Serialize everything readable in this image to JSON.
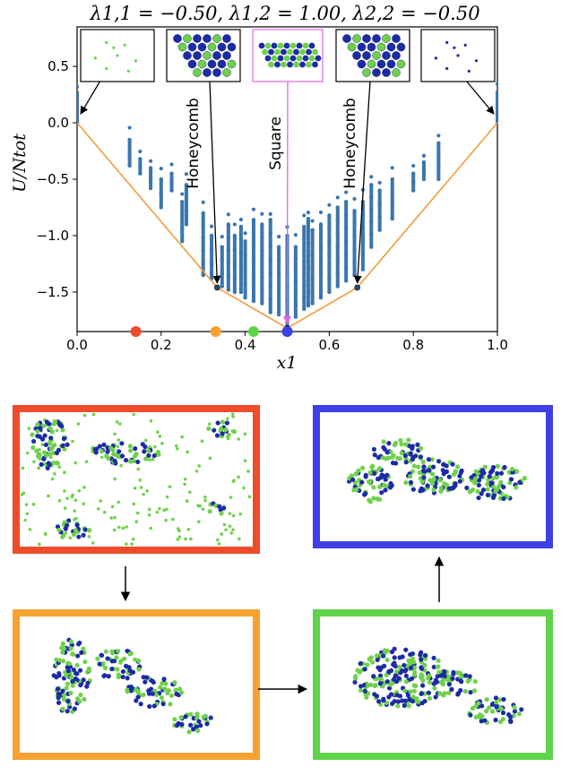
{
  "chart_data": {
    "type": "scatter",
    "title": "λ1,1 = −0.50, λ1,2 = 1.00, λ2,2 = −0.50",
    "xlabel": "x1",
    "ylabel": "U/Ntot",
    "xlim": [
      0.0,
      1.0
    ],
    "ylim": [
      -1.85,
      0.85
    ],
    "xticks": [
      "0.0",
      "0.2",
      "0.4",
      "0.6",
      "0.8",
      "1.0"
    ],
    "yticks": [
      "0.5",
      "0.0",
      "−0.5",
      "−1.0",
      "−1.5"
    ],
    "grid": false,
    "scatter_color": "#3a76ad",
    "hull_color": "#f59a3c",
    "hull": {
      "x": [
        0.0,
        0.3333,
        0.5,
        0.6667,
        1.0
      ],
      "y": [
        0.0,
        -1.46,
        -1.82,
        -1.46,
        0.0
      ]
    },
    "annotations": [
      {
        "label": "Honeycomb",
        "x": 0.3333,
        "y": -1.46
      },
      {
        "label": "Square",
        "x": 0.5,
        "y": -1.82
      },
      {
        "label": "Honeycomb",
        "x": 0.6667,
        "y": -1.46
      }
    ],
    "markers": [
      {
        "x": 0.14,
        "color": "#ee4b2b"
      },
      {
        "x": 0.33,
        "color": "#f5a230"
      },
      {
        "x": 0.42,
        "color": "#5fd349"
      },
      {
        "x": 0.5,
        "color": "#3c40e5"
      }
    ],
    "scatter_columns": [
      {
        "x": 0.0,
        "ymin": 0.0,
        "ymax": 0.27
      },
      {
        "x": 0.125,
        "ymin": -0.38,
        "ymax": -0.15
      },
      {
        "x": 0.15,
        "ymin": -0.45,
        "ymax": -0.32
      },
      {
        "x": 0.175,
        "ymin": -0.58,
        "ymax": -0.4
      },
      {
        "x": 0.2,
        "ymin": -0.75,
        "ymax": -0.5
      },
      {
        "x": 0.225,
        "ymin": -0.6,
        "ymax": -0.45
      },
      {
        "x": 0.25,
        "ymin": -1.05,
        "ymax": -0.7
      },
      {
        "x": 0.26,
        "ymin": -0.9,
        "ymax": -0.55
      },
      {
        "x": 0.3,
        "ymin": -1.35,
        "ymax": -0.8
      },
      {
        "x": 0.32,
        "ymin": -1.38,
        "ymax": -1.0
      },
      {
        "x": 0.345,
        "ymin": -1.45,
        "ymax": -1.1
      },
      {
        "x": 0.36,
        "ymin": -1.48,
        "ymax": -0.9
      },
      {
        "x": 0.375,
        "ymin": -1.5,
        "ymax": -1.0
      },
      {
        "x": 0.39,
        "ymin": -1.5,
        "ymax": -0.92
      },
      {
        "x": 0.4,
        "ymin": -1.55,
        "ymax": -1.05
      },
      {
        "x": 0.42,
        "ymin": -1.58,
        "ymax": -0.86
      },
      {
        "x": 0.44,
        "ymin": -1.6,
        "ymax": -0.9
      },
      {
        "x": 0.46,
        "ymin": -1.68,
        "ymax": -0.86
      },
      {
        "x": 0.48,
        "ymin": -1.7,
        "ymax": -1.1
      },
      {
        "x": 0.5,
        "ymin": -1.8,
        "ymax": -1.0
      },
      {
        "x": 0.52,
        "ymin": -1.72,
        "ymax": -1.1
      },
      {
        "x": 0.54,
        "ymin": -1.65,
        "ymax": -0.92
      },
      {
        "x": 0.55,
        "ymin": -1.62,
        "ymax": -0.85
      },
      {
        "x": 0.56,
        "ymin": -1.6,
        "ymax": -0.95
      },
      {
        "x": 0.58,
        "ymin": -1.55,
        "ymax": -0.9
      },
      {
        "x": 0.6,
        "ymin": -1.5,
        "ymax": -0.82
      },
      {
        "x": 0.62,
        "ymin": -1.45,
        "ymax": -0.75
      },
      {
        "x": 0.64,
        "ymin": -1.4,
        "ymax": -0.7
      },
      {
        "x": 0.66,
        "ymin": -1.35,
        "ymax": -0.78
      },
      {
        "x": 0.68,
        "ymin": -1.3,
        "ymax": -0.7
      },
      {
        "x": 0.7,
        "ymin": -1.1,
        "ymax": -0.55
      },
      {
        "x": 0.72,
        "ymin": -0.95,
        "ymax": -0.6
      },
      {
        "x": 0.75,
        "ymin": -0.85,
        "ymax": -0.5
      },
      {
        "x": 0.8,
        "ymin": -0.6,
        "ymax": -0.45
      },
      {
        "x": 0.825,
        "ymin": -0.5,
        "ymax": -0.35
      },
      {
        "x": 0.86,
        "ymin": -0.5,
        "ymax": -0.18
      },
      {
        "x": 1.0,
        "ymin": 0.0,
        "ymax": 0.27
      }
    ]
  },
  "insets": [
    {
      "kind": "green-sparse",
      "border": "#000000"
    },
    {
      "kind": "honeycomb",
      "border": "#000000"
    },
    {
      "kind": "square",
      "border": "#e066e0"
    },
    {
      "kind": "honeycomb",
      "border": "#000000"
    },
    {
      "kind": "blue-sparse",
      "border": "#000000"
    }
  ],
  "snapshots": [
    {
      "name": "red",
      "color": "#ee4b2b"
    },
    {
      "name": "orange",
      "color": "#f5a230"
    },
    {
      "name": "green",
      "color": "#5fd349"
    },
    {
      "name": "blue",
      "color": "#3c40e5"
    }
  ],
  "colors": {
    "particle_green": "#6fd14a",
    "particle_blue": "#1c2ba6"
  }
}
